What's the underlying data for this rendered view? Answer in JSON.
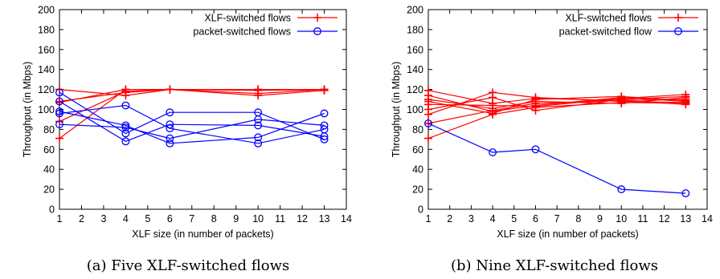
{
  "chart_data": [
    {
      "type": "line",
      "caption": "(a) Five XLF-switched flows",
      "xlabel": "XLF size (in number of packets)",
      "ylabel": "Throughput (in Mbps)",
      "xlim": [
        1,
        14
      ],
      "ylim": [
        0,
        200
      ],
      "xticks": [
        1,
        2,
        3,
        4,
        5,
        6,
        7,
        8,
        9,
        10,
        11,
        12,
        13,
        14
      ],
      "yticks": [
        0,
        20,
        40,
        60,
        80,
        100,
        120,
        140,
        160,
        180,
        200
      ],
      "legend_position": "top-right",
      "legend": [
        {
          "label": "XLF-switched flows",
          "color": "#ff0000",
          "marker": "plus"
        },
        {
          "label": "packet-switched flows",
          "color": "#0000ff",
          "marker": "circle"
        }
      ],
      "x": [
        1,
        4,
        6,
        10,
        13
      ],
      "series": [
        {
          "group": 0,
          "values": [
            71,
            120,
            120,
            119,
            120
          ]
        },
        {
          "group": 0,
          "values": [
            88,
            118,
            120,
            120,
            120
          ]
        },
        {
          "group": 0,
          "values": [
            108,
            117,
            120,
            116,
            120
          ]
        },
        {
          "group": 0,
          "values": [
            120,
            114,
            120,
            114,
            119
          ]
        },
        {
          "group": 0,
          "values": [
            107,
            120,
            120,
            120,
            120
          ]
        },
        {
          "group": 1,
          "values": [
            117,
            76,
            97,
            97,
            70
          ]
        },
        {
          "group": 1,
          "values": [
            108,
            68,
            85,
            84,
            73
          ]
        },
        {
          "group": 1,
          "values": [
            98,
            84,
            66,
            72,
            96
          ]
        },
        {
          "group": 1,
          "values": [
            96,
            104,
            81,
            66,
            80
          ]
        },
        {
          "group": 1,
          "values": [
            85,
            82,
            71,
            90,
            84
          ]
        }
      ]
    },
    {
      "type": "line",
      "caption": "(b) Nine XLF-switched flows",
      "xlabel": "XLF size (in number of packets)",
      "ylabel": "Throughput (in Mbps)",
      "xlim": [
        1,
        14
      ],
      "ylim": [
        0,
        200
      ],
      "xticks": [
        1,
        2,
        3,
        4,
        5,
        6,
        7,
        8,
        9,
        10,
        11,
        12,
        13,
        14
      ],
      "yticks": [
        0,
        20,
        40,
        60,
        80,
        100,
        120,
        140,
        160,
        180,
        200
      ],
      "legend_position": "top-right",
      "legend": [
        {
          "label": "XLF-switched flows",
          "color": "#ff0000",
          "marker": "plus"
        },
        {
          "label": "packet-switched flow",
          "color": "#0000ff",
          "marker": "circle"
        }
      ],
      "x": [
        1,
        4,
        6,
        10,
        13
      ],
      "series": [
        {
          "group": 0,
          "values": [
            71,
            95,
            102,
            107,
            106
          ]
        },
        {
          "group": 0,
          "values": [
            86,
            99,
            106,
            109,
            110
          ]
        },
        {
          "group": 0,
          "values": [
            95,
            117,
            112,
            108,
            107
          ]
        },
        {
          "group": 0,
          "values": [
            100,
            112,
            99,
            110,
            113
          ]
        },
        {
          "group": 0,
          "values": [
            105,
            104,
            103,
            111,
            115
          ]
        },
        {
          "group": 0,
          "values": [
            108,
            96,
            110,
            113,
            109
          ]
        },
        {
          "group": 0,
          "values": [
            110,
            101,
            108,
            106,
            112
          ]
        },
        {
          "group": 0,
          "values": [
            114,
            98,
            104,
            112,
            108
          ]
        },
        {
          "group": 0,
          "values": [
            119,
            106,
            111,
            109,
            105
          ]
        },
        {
          "group": 1,
          "values": [
            86,
            57,
            60,
            20,
            16
          ]
        }
      ]
    }
  ]
}
